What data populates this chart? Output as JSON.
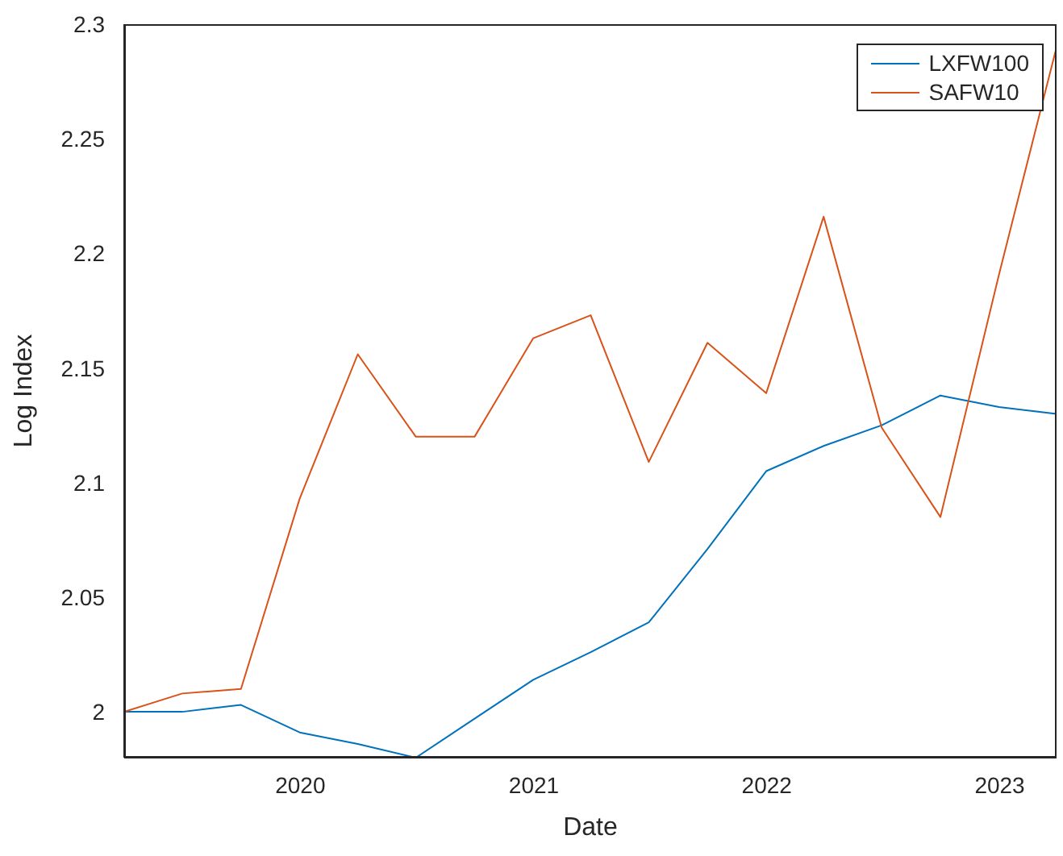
{
  "chart_data": {
    "type": "line",
    "xlabel": "Date",
    "ylabel": "Log Index",
    "x": [
      "2019-03-31",
      "2019-06-30",
      "2019-09-30",
      "2019-12-31",
      "2020-03-31",
      "2020-06-30",
      "2020-09-30",
      "2020-12-31",
      "2021-03-31",
      "2021-06-30",
      "2021-09-30",
      "2021-12-31",
      "2022-03-31",
      "2022-06-30",
      "2022-09-30",
      "2022-12-31",
      "2023-03-31"
    ],
    "series": [
      {
        "name": "LXFW100",
        "color": "#0072bd",
        "values": [
          2.0,
          2.0,
          2.003,
          1.991,
          1.986,
          1.98,
          1.997,
          2.014,
          2.026,
          2.039,
          2.071,
          2.105,
          2.116,
          2.125,
          2.138,
          2.133,
          2.13
        ]
      },
      {
        "name": "SAFW10",
        "color": "#d95319",
        "values": [
          2.0,
          2.008,
          2.01,
          2.093,
          2.156,
          2.12,
          2.12,
          2.163,
          2.173,
          2.109,
          2.161,
          2.139,
          2.216,
          2.124,
          2.085,
          2.191,
          2.29
        ]
      }
    ],
    "xlim": [
      "2019-03-31",
      "2023-03-31"
    ],
    "xticks": [
      "2020",
      "2021",
      "2022",
      "2023"
    ],
    "ylim": [
      1.98,
      2.3
    ],
    "yticks": [
      2,
      2.05,
      2.1,
      2.15,
      2.2,
      2.25,
      2.3
    ],
    "grid": false,
    "legend": "top right",
    "marker": "none",
    "line_style": "solid"
  }
}
